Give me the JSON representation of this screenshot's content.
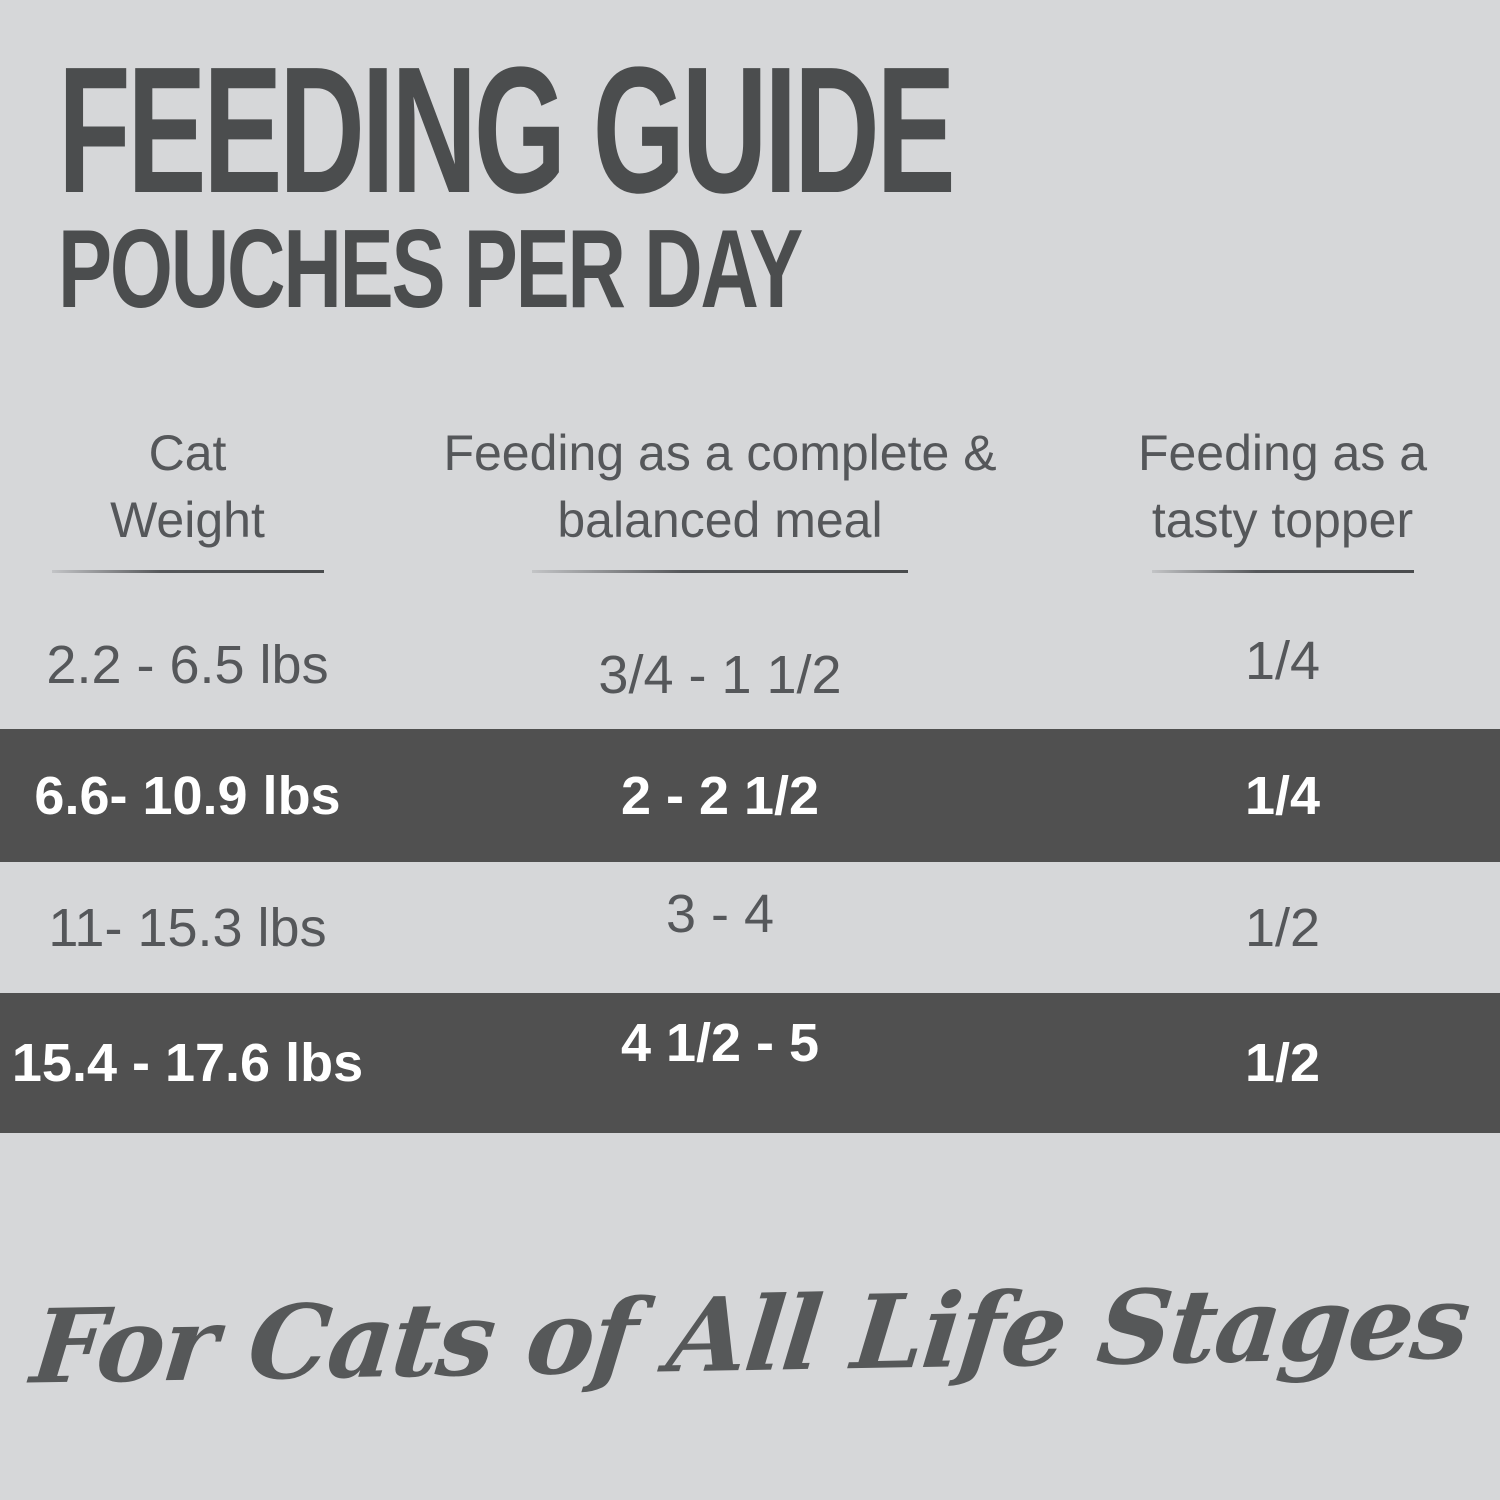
{
  "title": "FEEDING GUIDE",
  "subtitle": "POUCHES PER DAY",
  "table": {
    "columns": [
      {
        "line1": "Cat",
        "line2": "Weight"
      },
      {
        "line1": "Feeding as a complete &",
        "line2": "balanced meal"
      },
      {
        "line1": "Feeding as a",
        "line2": "tasty topper"
      }
    ],
    "rows": [
      {
        "cat_weight": "2.2 - 6.5 lbs",
        "complete_meal": "3/4 - 1 1/2",
        "tasty_topper": "1/4",
        "highlighted": false
      },
      {
        "cat_weight": "6.6- 10.9 lbs",
        "complete_meal": "2 - 2 1/2",
        "tasty_topper": "1/4",
        "highlighted": true
      },
      {
        "cat_weight": "11- 15.3 lbs",
        "complete_meal": "3 - 4",
        "tasty_topper": "1/2",
        "highlighted": false
      },
      {
        "cat_weight": "15.4 - 17.6 lbs",
        "complete_meal": "4 1/2 - 5",
        "tasty_topper": "1/2",
        "highlighted": true
      }
    ]
  },
  "footer": {
    "tagline": "For Cats of All Life Stages"
  },
  "colors": {
    "background": "#d6d7d9",
    "highlight_row": "#505050",
    "highlight_row_text": "#ffffff",
    "title_text": "#4b4d4e",
    "body_text": "#55575a"
  }
}
